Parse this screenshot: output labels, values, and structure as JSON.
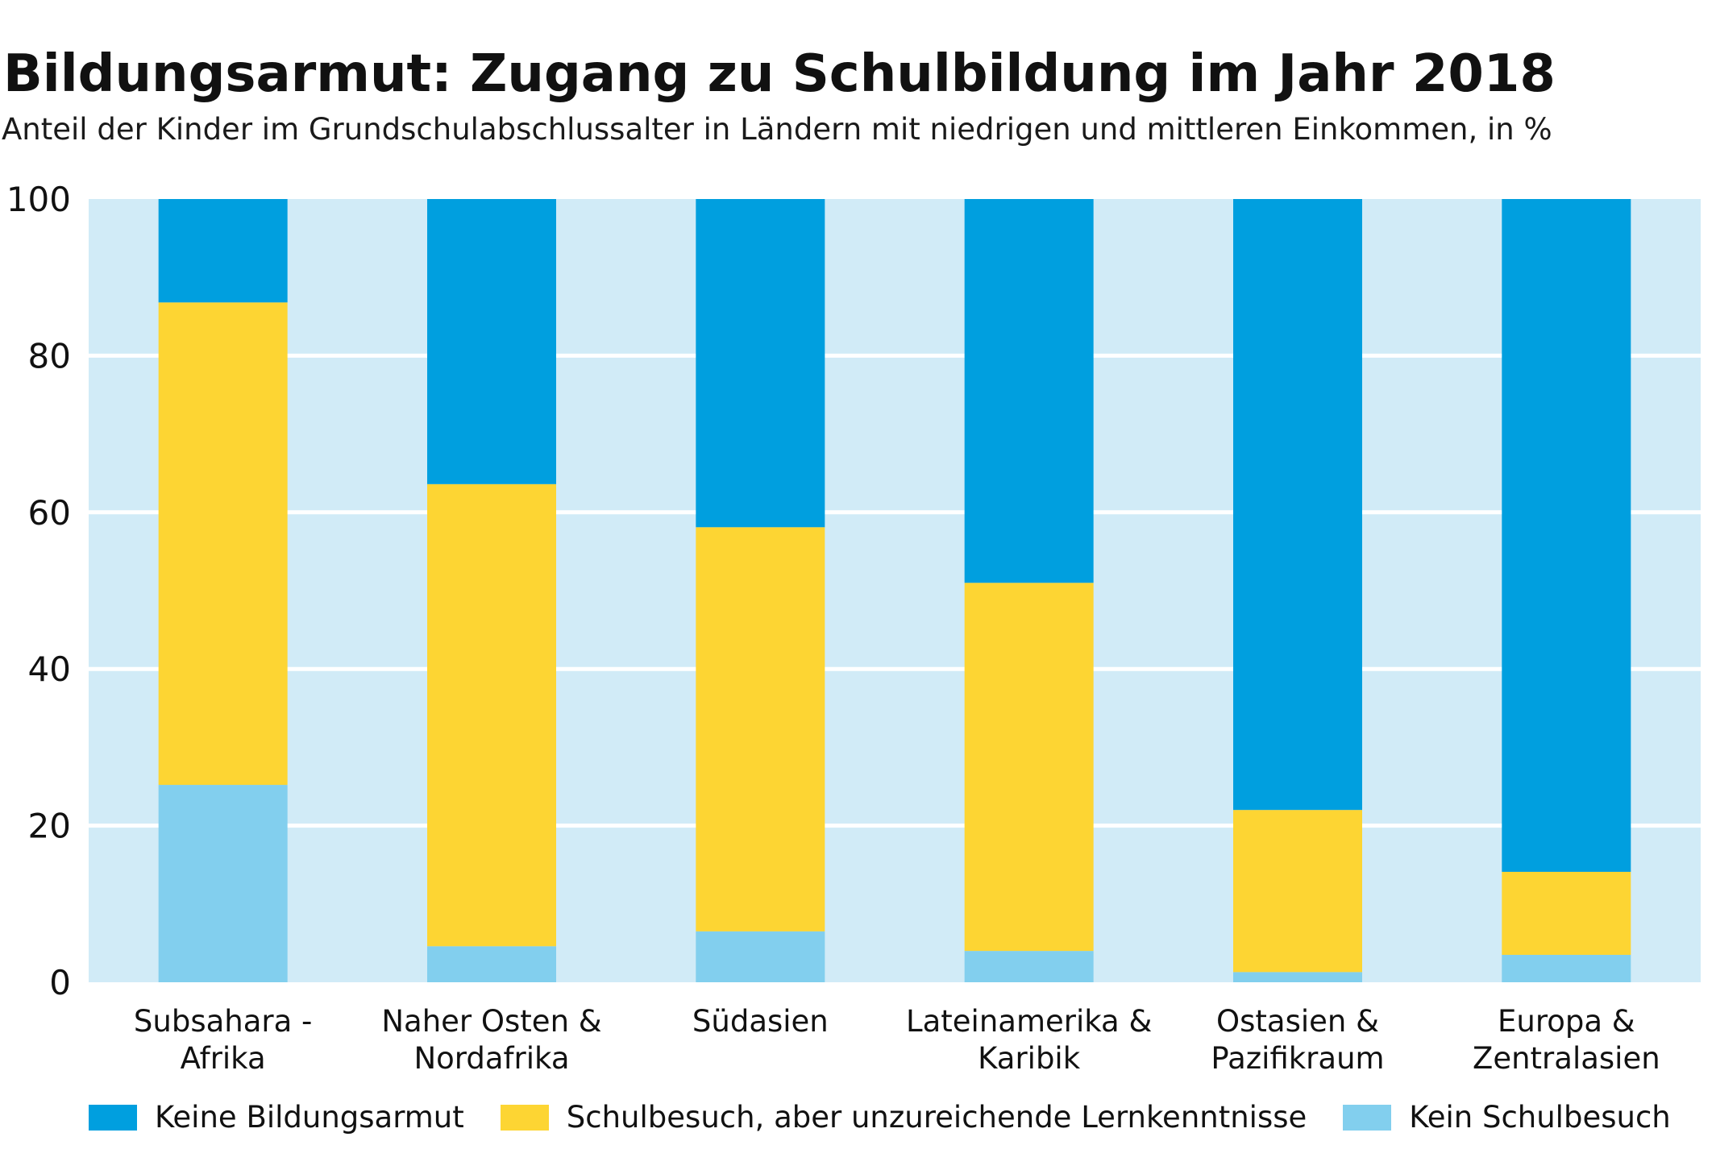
{
  "title": "Bildungsarmut: Zugang zu Schulbildung im Jahr 2018",
  "subtitle": "Anteil der Kinder im Grundschulabschlussalter in Ländern mit niedrigen und mittleren Einkommen, in %",
  "colors": {
    "keine": "#009fdf",
    "unzureichend": "#fdd533",
    "kein_schulbesuch": "#82cfee",
    "plot_background": "#d1ebf7",
    "gridline": "#ffffff"
  },
  "legend": [
    {
      "label": "Keine Bildungsarmut",
      "color": "#009fdf"
    },
    {
      "label": "Schulbesuch, aber unzureichende Lernkenntnisse",
      "color": "#fdd533"
    },
    {
      "label": "Kein Schulbesuch",
      "color": "#82cfee"
    }
  ],
  "chart_data": {
    "type": "bar",
    "stacked": true,
    "categories": [
      [
        "Subsahara -",
        "Afrika"
      ],
      [
        "Naher Osten &",
        "Nordafrika"
      ],
      [
        "Südasien"
      ],
      [
        "Lateinamerika &",
        "Karibik"
      ],
      [
        "Ostasien &",
        "Pazifikraum"
      ],
      [
        "Europa &",
        "Zentralasien"
      ]
    ],
    "series": [
      {
        "name": "Kein Schulbesuch",
        "color": "#82cfee",
        "values": [
          25.2,
          4.6,
          6.5,
          4.0,
          1.3,
          3.5
        ]
      },
      {
        "name": "Schulbesuch, aber unzureichende Lernkenntnisse",
        "color": "#fdd533",
        "values": [
          61.6,
          59.0,
          51.6,
          47.0,
          20.7,
          10.6
        ]
      },
      {
        "name": "Keine Bildungsarmut",
        "color": "#009fdf",
        "values": [
          13.2,
          36.4,
          41.9,
          49.0,
          78.0,
          85.9
        ]
      }
    ],
    "ylim": [
      0,
      100
    ],
    "yticks": [
      "0",
      "20",
      "40",
      "60",
      "80",
      "100"
    ],
    "grid": true,
    "legend_position": "bottom"
  }
}
